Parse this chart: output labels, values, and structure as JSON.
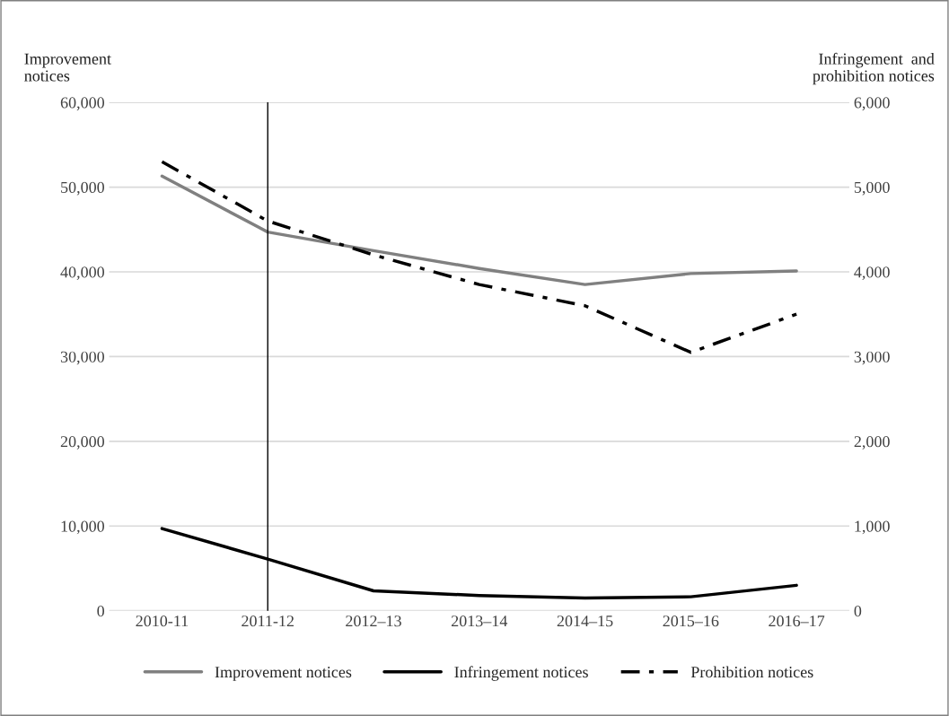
{
  "chart_data": {
    "type": "line",
    "ylabel": "Improvement\nnotices",
    "y2label": "Infringement  and\nprohibition notices",
    "categories": [
      "2010-11",
      "2011-12",
      "2012–13",
      "2013–14",
      "2014–15",
      "2015–16",
      "2016–17"
    ],
    "series": [
      {
        "name": "Improvement notices",
        "color": "#808080",
        "line_style": "solid",
        "values": [
          51300,
          44700,
          42500,
          40400,
          38500,
          39800,
          40100
        ]
      },
      {
        "name": "Infringement notices",
        "color": "#000000",
        "line_style": "solid",
        "axis": "y2",
        "values": [
          970,
          610,
          235,
          180,
          150,
          165,
          300
        ]
      },
      {
        "name": "Prohibition notices",
        "color": "#000000",
        "line_style": "dashdot",
        "axis": "y2",
        "values": [
          5300,
          4600,
          4200,
          3850,
          3600,
          3050,
          3500
        ]
      }
    ],
    "ylim": [
      0,
      60000
    ],
    "yticks": [
      {
        "value": 0,
        "label": "0"
      },
      {
        "value": 10000,
        "label": "10,000"
      },
      {
        "value": 20000,
        "label": "20,000"
      },
      {
        "value": 30000,
        "label": "30,000"
      },
      {
        "value": 40000,
        "label": "40,000"
      },
      {
        "value": 50000,
        "label": "50,000"
      },
      {
        "value": 60000,
        "label": "60,000"
      }
    ],
    "y2lim": [
      0,
      6000
    ],
    "y2ticks": [
      {
        "value": 0,
        "label": "0"
      },
      {
        "value": 1000,
        "label": "1,000"
      },
      {
        "value": 2000,
        "label": "2,000"
      },
      {
        "value": 3000,
        "label": "3,000"
      },
      {
        "value": 4000,
        "label": "4,000"
      },
      {
        "value": 5000,
        "label": "5,000"
      },
      {
        "value": 6000,
        "label": "6,000"
      }
    ],
    "ref_lines": [
      {
        "axis": "x",
        "value": "2011-12",
        "color": "#000000"
      }
    ],
    "grid": "y",
    "legend": "bottom",
    "marker": "none"
  }
}
